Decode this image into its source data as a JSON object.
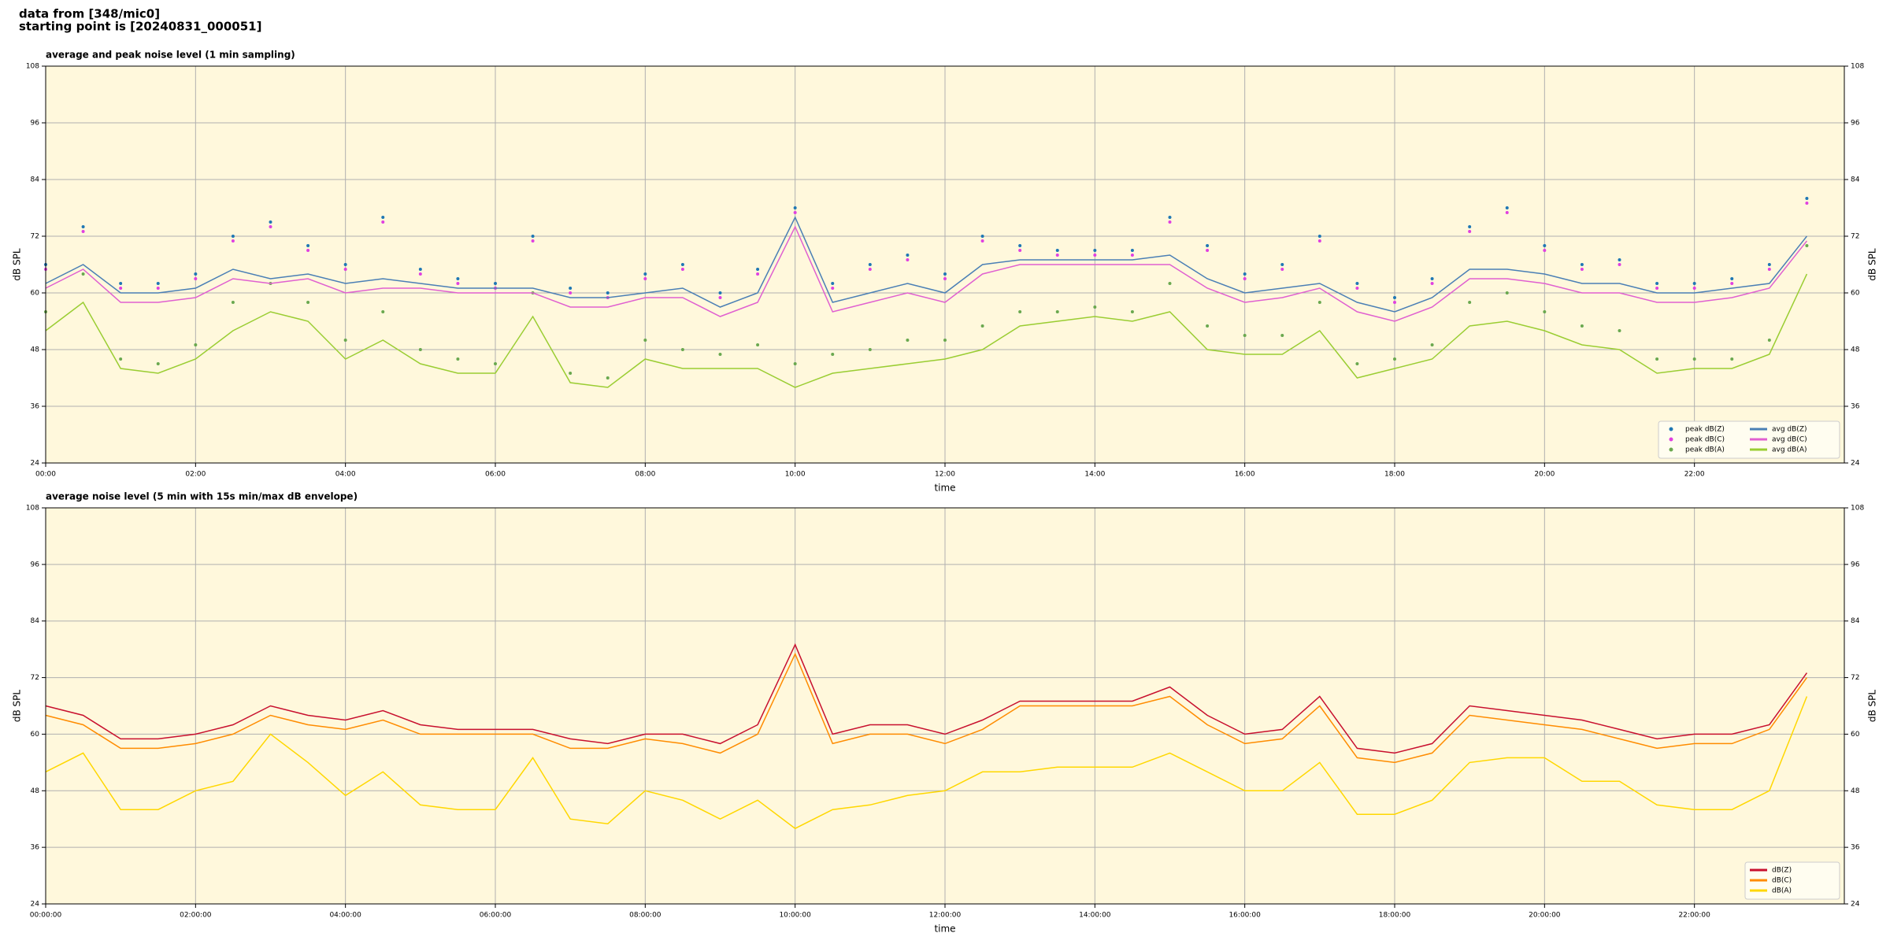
{
  "header": {
    "lines": [
      "data from [348/mic0]",
      "starting point is [20240831_000051]"
    ]
  },
  "chart_data": [
    {
      "type": "line",
      "title": "average and peak noise level (1 min sampling)",
      "xlabel": "time",
      "ylabel": "dB SPL",
      "x": [
        "00:00",
        "00:30",
        "01:00",
        "01:30",
        "02:00",
        "02:30",
        "03:00",
        "03:30",
        "04:00",
        "04:30",
        "05:00",
        "05:30",
        "06:00",
        "06:30",
        "07:00",
        "07:30",
        "08:00",
        "08:30",
        "09:00",
        "09:30",
        "10:00",
        "10:30",
        "11:00",
        "11:30",
        "12:00",
        "12:30",
        "13:00",
        "13:30",
        "14:00",
        "14:30",
        "15:00",
        "15:30",
        "16:00",
        "16:30",
        "17:00",
        "17:30",
        "18:00",
        "18:30",
        "19:00",
        "19:30",
        "20:00",
        "20:30",
        "21:00",
        "21:30",
        "22:00",
        "22:30",
        "23:00",
        "23:30"
      ],
      "xlim": [
        "00:00",
        "24:00"
      ],
      "xticks": [
        "00:00",
        "02:00",
        "04:00",
        "06:00",
        "08:00",
        "10:00",
        "12:00",
        "14:00",
        "16:00",
        "18:00",
        "20:00",
        "22:00"
      ],
      "ylim": [
        24,
        108
      ],
      "yticks": [
        24,
        36,
        48,
        60,
        72,
        84,
        96,
        108
      ],
      "grid": true,
      "background": "#fff8dc",
      "legend": "lower right",
      "series": [
        {
          "name": "peak dB(Z)",
          "kind": "scatter",
          "color": "#1f77b4",
          "values": [
            66,
            74,
            62,
            62,
            64,
            72,
            75,
            70,
            66,
            76,
            65,
            63,
            62,
            72,
            61,
            60,
            64,
            66,
            60,
            65,
            78,
            62,
            66,
            68,
            64,
            72,
            70,
            69,
            69,
            69,
            76,
            70,
            64,
            66,
            72,
            62,
            59,
            63,
            74,
            78,
            70,
            66,
            67,
            62,
            62,
            63,
            66,
            80
          ]
        },
        {
          "name": "peak dB(C)",
          "kind": "scatter",
          "color": "#e040e0",
          "values": [
            65,
            73,
            61,
            61,
            63,
            71,
            74,
            69,
            65,
            75,
            64,
            62,
            61,
            71,
            60,
            59,
            63,
            65,
            59,
            64,
            77,
            61,
            65,
            67,
            63,
            71,
            69,
            68,
            68,
            68,
            75,
            69,
            63,
            65,
            71,
            61,
            58,
            62,
            73,
            77,
            69,
            65,
            66,
            61,
            61,
            62,
            65,
            79
          ]
        },
        {
          "name": "peak dB(A)",
          "kind": "scatter",
          "color": "#6aa84f",
          "values": [
            56,
            64,
            46,
            45,
            49,
            58,
            62,
            58,
            50,
            56,
            48,
            46,
            45,
            60,
            43,
            42,
            50,
            48,
            47,
            49,
            45,
            47,
            48,
            50,
            50,
            53,
            56,
            56,
            57,
            56,
            62,
            53,
            51,
            51,
            58,
            45,
            46,
            49,
            58,
            60,
            56,
            53,
            52,
            46,
            46,
            46,
            50,
            70
          ]
        },
        {
          "name": "avg dB(Z)",
          "kind": "line",
          "color": "#4a7fb5",
          "values": [
            62,
            66,
            60,
            60,
            61,
            65,
            63,
            64,
            62,
            63,
            62,
            61,
            61,
            61,
            59,
            59,
            60,
            61,
            57,
            60,
            76,
            58,
            60,
            62,
            60,
            66,
            67,
            67,
            67,
            67,
            68,
            63,
            60,
            61,
            62,
            58,
            56,
            59,
            65,
            65,
            64,
            62,
            62,
            60,
            60,
            61,
            62,
            72
          ]
        },
        {
          "name": "avg dB(C)",
          "kind": "line",
          "color": "#e060d0",
          "values": [
            61,
            65,
            58,
            58,
            59,
            63,
            62,
            63,
            60,
            61,
            61,
            60,
            60,
            60,
            57,
            57,
            59,
            59,
            55,
            58,
            74,
            56,
            58,
            60,
            58,
            64,
            66,
            66,
            66,
            66,
            66,
            61,
            58,
            59,
            61,
            56,
            54,
            57,
            63,
            63,
            62,
            60,
            60,
            58,
            58,
            59,
            61,
            71
          ]
        },
        {
          "name": "avg dB(A)",
          "kind": "line",
          "color": "#9acd32",
          "values": [
            52,
            58,
            44,
            43,
            46,
            52,
            56,
            54,
            46,
            50,
            45,
            43,
            43,
            55,
            41,
            40,
            46,
            44,
            44,
            44,
            40,
            43,
            44,
            45,
            46,
            48,
            53,
            54,
            55,
            54,
            56,
            48,
            47,
            47,
            52,
            42,
            44,
            46,
            53,
            54,
            52,
            49,
            48,
            43,
            44,
            44,
            47,
            64
          ]
        }
      ]
    },
    {
      "type": "line",
      "title": "average noise level (5 min with 15s min/max dB envelope)",
      "xlabel": "time",
      "ylabel": "dB SPL",
      "x": [
        "00:00:00",
        "00:30:00",
        "01:00:00",
        "01:30:00",
        "02:00:00",
        "02:30:00",
        "03:00:00",
        "03:30:00",
        "04:00:00",
        "04:30:00",
        "05:00:00",
        "05:30:00",
        "06:00:00",
        "06:30:00",
        "07:00:00",
        "07:30:00",
        "08:00:00",
        "08:30:00",
        "09:00:00",
        "09:30:00",
        "10:00:00",
        "10:30:00",
        "11:00:00",
        "11:30:00",
        "12:00:00",
        "12:30:00",
        "13:00:00",
        "13:30:00",
        "14:00:00",
        "14:30:00",
        "15:00:00",
        "15:30:00",
        "16:00:00",
        "16:30:00",
        "17:00:00",
        "17:30:00",
        "18:00:00",
        "18:30:00",
        "19:00:00",
        "19:30:00",
        "20:00:00",
        "20:30:00",
        "21:00:00",
        "21:30:00",
        "22:00:00",
        "22:30:00",
        "23:00:00",
        "23:30:00"
      ],
      "xlim": [
        "00:00:00",
        "24:00:00"
      ],
      "xticks": [
        "00:00:00",
        "02:00:00",
        "04:00:00",
        "06:00:00",
        "08:00:00",
        "10:00:00",
        "12:00:00",
        "14:00:00",
        "16:00:00",
        "18:00:00",
        "20:00:00",
        "22:00:00"
      ],
      "ylim": [
        24,
        108
      ],
      "yticks": [
        24,
        36,
        48,
        60,
        72,
        84,
        96,
        108
      ],
      "grid": true,
      "background": "#fff8dc",
      "legend": "lower right",
      "series": [
        {
          "name": "dB(Z)",
          "kind": "line",
          "color": "#c8102e",
          "values": [
            66,
            64,
            59,
            59,
            60,
            62,
            66,
            64,
            63,
            65,
            62,
            61,
            61,
            61,
            59,
            58,
            60,
            60,
            58,
            62,
            79,
            60,
            62,
            62,
            60,
            63,
            67,
            67,
            67,
            67,
            70,
            64,
            60,
            61,
            68,
            57,
            56,
            58,
            66,
            65,
            64,
            63,
            61,
            59,
            60,
            60,
            62,
            73
          ]
        },
        {
          "name": "dB(C)",
          "kind": "line",
          "color": "#ff8c00",
          "values": [
            64,
            62,
            57,
            57,
            58,
            60,
            64,
            62,
            61,
            63,
            60,
            60,
            60,
            60,
            57,
            57,
            59,
            58,
            56,
            60,
            77,
            58,
            60,
            60,
            58,
            61,
            66,
            66,
            66,
            66,
            68,
            62,
            58,
            59,
            66,
            55,
            54,
            56,
            64,
            63,
            62,
            61,
            59,
            57,
            58,
            58,
            61,
            72
          ]
        },
        {
          "name": "dB(A)",
          "kind": "line",
          "color": "#ffd700",
          "values": [
            52,
            56,
            44,
            44,
            48,
            50,
            60,
            54,
            47,
            52,
            45,
            44,
            44,
            55,
            42,
            41,
            48,
            46,
            42,
            46,
            40,
            44,
            45,
            47,
            48,
            52,
            52,
            53,
            53,
            53,
            56,
            52,
            48,
            48,
            54,
            43,
            43,
            46,
            54,
            55,
            55,
            50,
            50,
            45,
            44,
            44,
            48,
            68
          ]
        }
      ]
    }
  ]
}
